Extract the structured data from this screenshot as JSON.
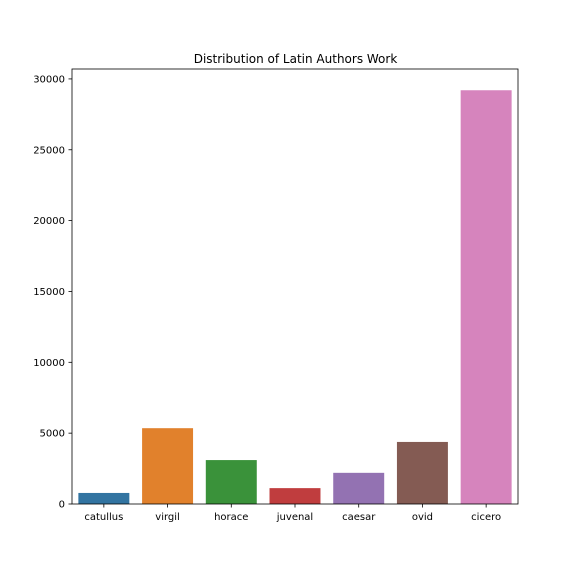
{
  "chart_data": {
    "type": "bar",
    "title": "Distribution of Latin Authors Work",
    "xlabel": "",
    "ylabel": "",
    "categories": [
      "catullus",
      "virgil",
      "horace",
      "juvenal",
      "caesar",
      "ovid",
      "cicero"
    ],
    "values": [
      780,
      5350,
      3100,
      1120,
      2200,
      4380,
      29200
    ],
    "colors": [
      "#3274a1",
      "#e1812c",
      "#3a923a",
      "#c03d3e",
      "#9372b2",
      "#845b53",
      "#d684bd"
    ],
    "ylim": [
      0,
      30700
    ],
    "yticks": [
      0,
      5000,
      10000,
      15000,
      20000,
      25000,
      30000
    ],
    "grid": false,
    "legend": "none"
  }
}
